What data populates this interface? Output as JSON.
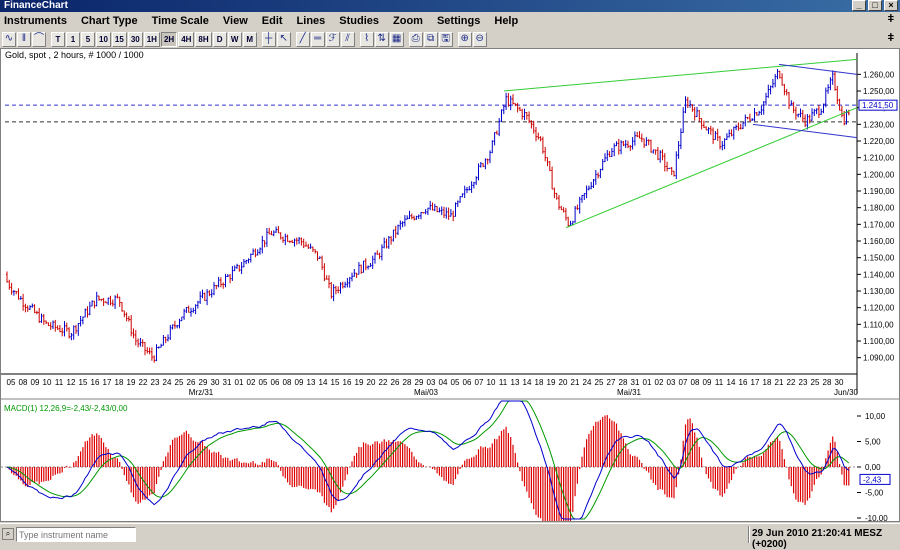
{
  "window": {
    "title": "FinanceChart"
  },
  "menu": [
    "Instruments",
    "Chart Type",
    "Time Scale",
    "View",
    "Edit",
    "Lines",
    "Studies",
    "Zoom",
    "Settings",
    "Help"
  ],
  "toolbar": {
    "timescales": [
      "T",
      "1",
      "5",
      "10",
      "15",
      "30",
      "1H",
      "2H",
      "4H",
      "8H",
      "D",
      "W",
      "M"
    ],
    "active": "2H"
  },
  "chart": {
    "instrument_label": "Gold, spot , 2 hours, # 1000 / 1000",
    "price_ticks": [
      "1.260,00",
      "1.250,00",
      "1.240,00",
      "1.230,00",
      "1.220,00",
      "1.210,00",
      "1.200,00",
      "1.190,00",
      "1.180,00",
      "1.170,00",
      "1.160,00",
      "1.150,00",
      "1.140,00",
      "1.130,00",
      "1.120,00",
      "1.110,00",
      "1.100,00",
      "1.090,00"
    ],
    "price_range": [
      1082,
      1268
    ],
    "price_markers": [
      {
        "label": "1.241,50",
        "value": 1241.5,
        "color": "#0000cc"
      }
    ],
    "hlines": [
      1241.5,
      1231.5
    ],
    "day_labels": [
      "05",
      "08",
      "09",
      "10",
      "11",
      "12",
      "15",
      "16",
      "17",
      "18",
      "19",
      "22",
      "23",
      "24",
      "25",
      "26",
      "29",
      "30",
      "31",
      "01",
      "02",
      "05",
      "06",
      "08",
      "09",
      "13",
      "14",
      "15",
      "16",
      "19",
      "20",
      "22",
      "26",
      "28",
      "29",
      "03",
      "04",
      "05",
      "06",
      "07",
      "10",
      "11",
      "13",
      "14",
      "18",
      "19",
      "20",
      "21",
      "24",
      "25",
      "27",
      "28",
      "31",
      "01",
      "02",
      "03",
      "07",
      "08",
      "09",
      "11",
      "14",
      "16",
      "17",
      "18",
      "21",
      "22",
      "23",
      "25",
      "28",
      "30"
    ],
    "month_labels": [
      "Mrz/31",
      "Mai/03",
      "Mai/31",
      "Jun/30"
    ],
    "trendlines": [
      {
        "name": "upper-channel",
        "from": [
          0.0,
          1250
        ],
        "to": [
          1.0,
          1269
        ],
        "color": "#33cc33"
      },
      {
        "name": "lower-channel",
        "from": [
          0.0,
          1168
        ],
        "to": [
          1.0,
          1240
        ],
        "color": "#33cc33"
      }
    ]
  },
  "macd": {
    "label": "MACD(1) 12,26,9=-2,43/-2,43/0,00",
    "ticks": [
      "10,00",
      "5,00",
      "0,00",
      "-5,00",
      "-10,00"
    ],
    "current": "-2,43"
  },
  "status": {
    "search_placeholder": "Type instrument name",
    "datetime": "29 Jun 2010 21:20:41 MESZ (+0200)"
  },
  "colors": {
    "up": "#0000cc",
    "down": "#cc0000",
    "trend": "#33cc33",
    "macd": "#0000cc",
    "signal": "#009900",
    "hist": "#dd0000"
  }
}
